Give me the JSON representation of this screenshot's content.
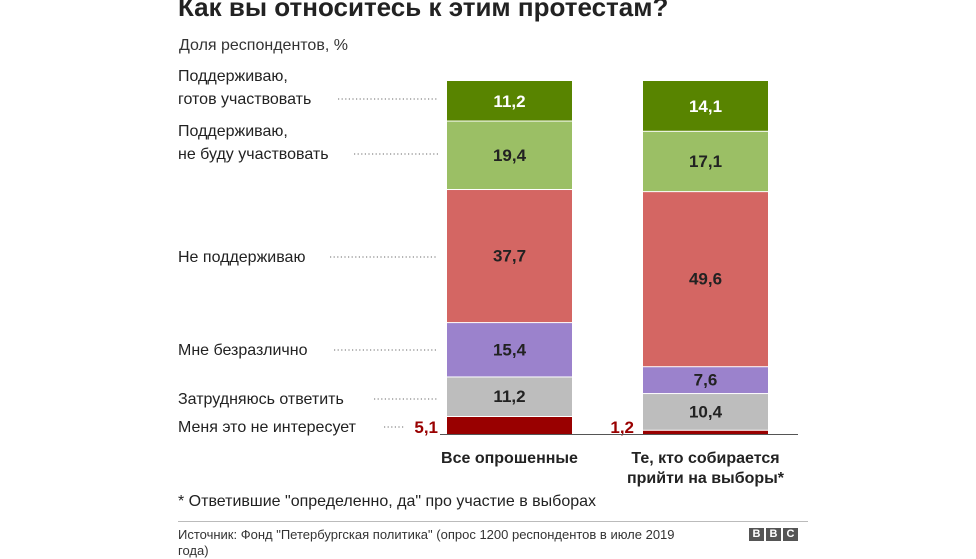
{
  "chart_data": {
    "type": "bar",
    "stacked": true,
    "title": "Как вы относитесь к этим протестам?",
    "subtitle": "Доля респондентов, %",
    "categories": [
      "Все опрошенные",
      "Те, кто собирается прийти на выборы*"
    ],
    "category_lines": [
      [
        "Все опрошенные"
      ],
      [
        "Те, кто собирается",
        "прийти на выборы*"
      ]
    ],
    "series": [
      {
        "name": "Поддерживаю, готов участвовать",
        "lines": [
          "Поддерживаю,",
          "готов участвовать"
        ],
        "color": "#588400",
        "label_color": "#ffffff",
        "values": [
          11.2,
          14.1
        ],
        "labels": [
          "11,2",
          "14,1"
        ]
      },
      {
        "name": "Поддерживаю, не буду участвовать",
        "lines": [
          "Поддерживаю,",
          "не буду участвовать"
        ],
        "color": "#9bbf65",
        "label_color": "#222222",
        "values": [
          19.4,
          17.1
        ],
        "labels": [
          "19,4",
          "17,1"
        ]
      },
      {
        "name": "Не поддерживаю",
        "lines": [
          "Не поддерживаю"
        ],
        "color": "#d46663",
        "label_color": "#222222",
        "values": [
          37.7,
          49.6
        ],
        "labels": [
          "37,7",
          "49,6"
        ]
      },
      {
        "name": "Мне безразлично",
        "lines": [
          "Мне безразлично"
        ],
        "color": "#9b82cc",
        "label_color": "#222222",
        "values": [
          15.4,
          7.6
        ],
        "labels": [
          "15,4",
          "7,6"
        ]
      },
      {
        "name": "Затрудняюсь ответить",
        "lines": [
          "Затрудняюсь ответить"
        ],
        "color": "#bdbdbd",
        "label_color": "#222222",
        "values": [
          11.2,
          10.4
        ],
        "labels": [
          "11,2",
          "10,4"
        ]
      },
      {
        "name": "Меня это не интересует",
        "lines": [
          "Меня это не интересует"
        ],
        "color": "#990000",
        "label_color": "#990000",
        "values": [
          5.1,
          1.2
        ],
        "labels": [
          "5,1",
          "1,2"
        ],
        "label_outside": true
      }
    ]
  },
  "footnote": "* Ответившие \"определенно, да\" про участие в выборах",
  "source": "Источник: Фонд \"Петербургская политика\" (опрос 1200 респондентов в июле 2019 года)",
  "logo": {
    "letters": [
      "B",
      "B",
      "C"
    ],
    "color": "#555555"
  }
}
